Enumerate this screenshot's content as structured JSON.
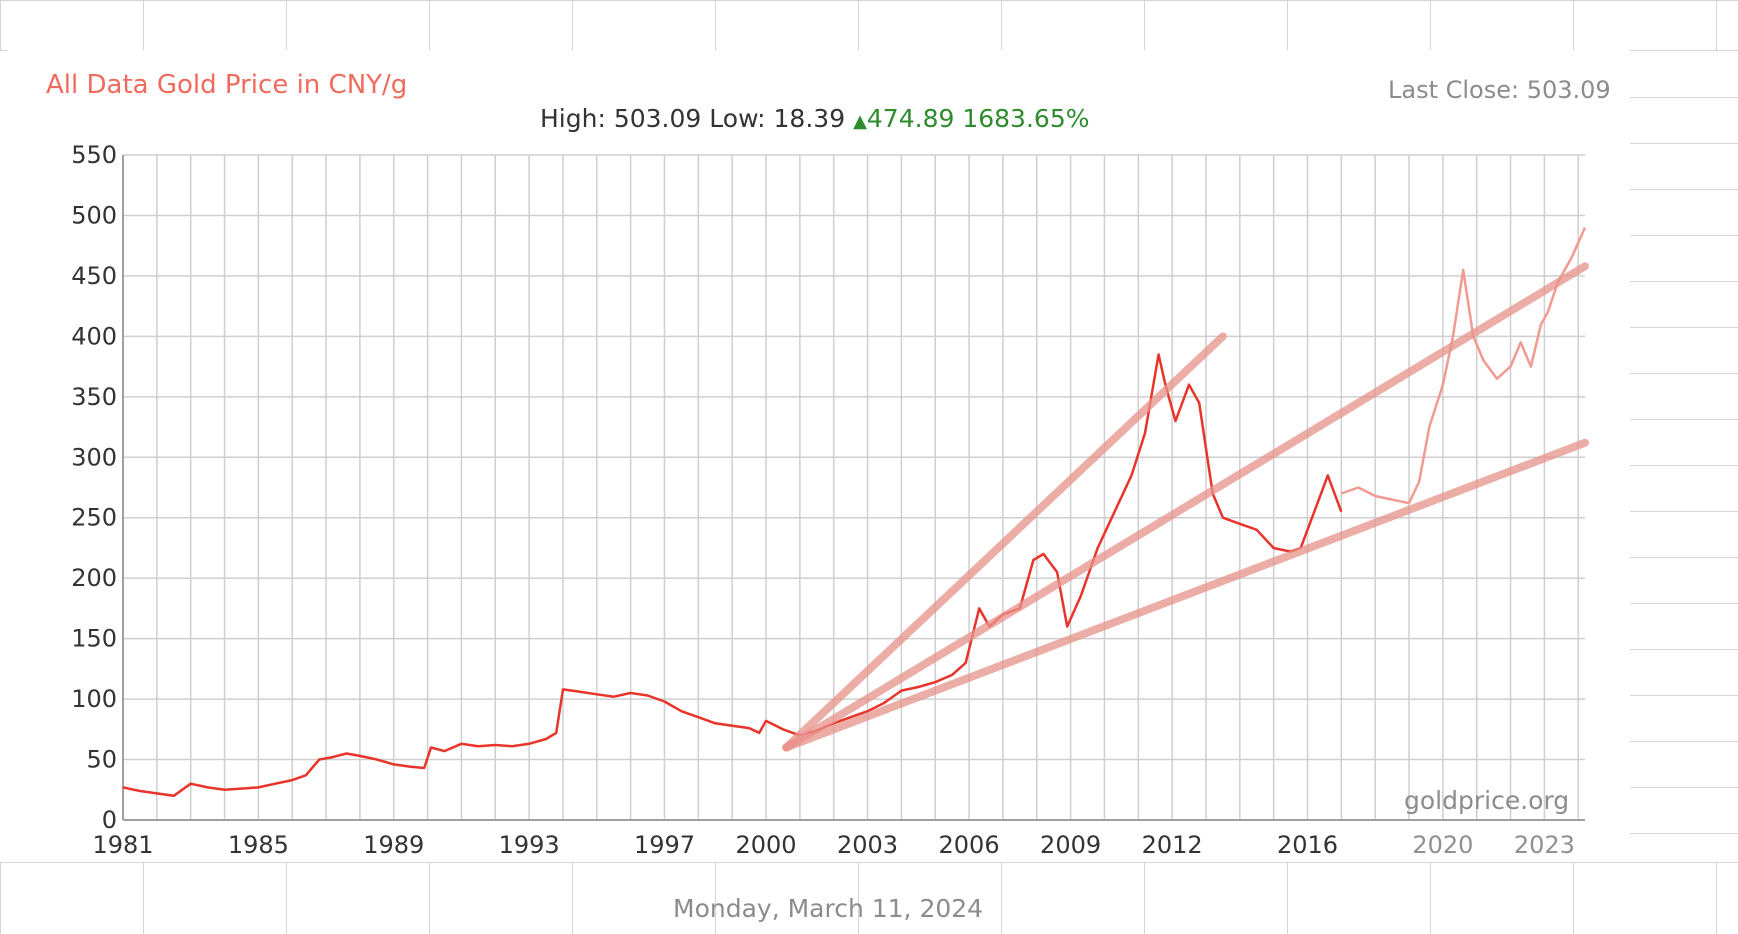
{
  "title": "All Data Gold Price in CNY/g",
  "stats": {
    "high_label": "High:",
    "high_value": "503.09",
    "low_label": "Low:",
    "low_value": "18.39",
    "change_arrow": "▲",
    "change_value": "474.89",
    "change_percent": "1683.65%"
  },
  "last_close": "Last Close: 503.09",
  "watermark": "goldprice.org",
  "footer_date": "Monday, March 11, 2024",
  "colors": {
    "price_line": "#e8342a",
    "price_line_faded": "#f29a92",
    "trend_line": "#e8928a",
    "trend_extension": "#d43a2a",
    "grid": "#cfcfcf",
    "sheet_grid": "#d4d4d4",
    "title": "#f06a5e",
    "change_up": "#2e8b2e"
  },
  "chart_data": {
    "type": "line",
    "title": "All Data Gold Price in CNY/g",
    "xlabel": "",
    "ylabel": "",
    "ylim": [
      0,
      550
    ],
    "xlim": [
      1981,
      2024.2
    ],
    "grid": true,
    "y_ticks": [
      "0",
      "50",
      "100",
      "150",
      "200",
      "250",
      "300",
      "350",
      "400",
      "450",
      "500",
      "550"
    ],
    "x_ticks": [
      {
        "x": 1981,
        "label": "1981"
      },
      {
        "x": 1985,
        "label": "1985"
      },
      {
        "x": 1989,
        "label": "1989"
      },
      {
        "x": 1993,
        "label": "1993"
      },
      {
        "x": 1997,
        "label": "1997"
      },
      {
        "x": 2000,
        "label": "2000"
      },
      {
        "x": 2003,
        "label": "2003"
      },
      {
        "x": 2006,
        "label": "2006"
      },
      {
        "x": 2009,
        "label": "2009"
      },
      {
        "x": 2012,
        "label": "2012"
      },
      {
        "x": 2016,
        "label": "2016"
      },
      {
        "x": 2020,
        "label": "2020"
      },
      {
        "x": 2023,
        "label": "2023"
      }
    ],
    "series": [
      {
        "name": "",
        "x": [
          1981.0,
          1981.5,
          1982.0,
          1982.5,
          1983.0,
          1983.5,
          1984.0,
          1984.5,
          1985.0,
          1985.5,
          1986.0,
          1986.4,
          1986.8,
          1987.2,
          1987.6,
          1988.0,
          1988.5,
          1989.0,
          1989.5,
          1989.9,
          1990.1,
          1990.5,
          1991.0,
          1991.5,
          1992.0,
          1992.5,
          1993.0,
          1993.5,
          1993.8,
          1994.0,
          1994.5,
          1995.0,
          1995.5,
          1996.0,
          1996.5,
          1997.0,
          1997.5,
          1998.0,
          1998.5,
          1999.0,
          1999.5,
          1999.8,
          2000.0,
          2000.5,
          2001.0,
          2001.5,
          2002.0,
          2002.5,
          2003.0,
          2003.5,
          2004.0,
          2004.5,
          2005.0,
          2005.5,
          2005.9,
          2006.3,
          2006.6,
          2007.0,
          2007.5,
          2007.9,
          2008.2,
          2008.6,
          2008.9,
          2009.3,
          2009.8,
          2010.3,
          2010.8,
          2011.2,
          2011.6,
          2011.8,
          2012.1,
          2012.5,
          2012.8,
          2013.2,
          2013.5,
          2014.0,
          2014.5,
          2015.0,
          2015.5,
          2015.8,
          2016.2,
          2016.6,
          2017.0
        ],
        "values": [
          27,
          24,
          22,
          20,
          30,
          27,
          25,
          26,
          27,
          30,
          33,
          37,
          50,
          52,
          55,
          53,
          50,
          46,
          44,
          43,
          60,
          57,
          63,
          61,
          62,
          61,
          63,
          67,
          72,
          108,
          106,
          104,
          102,
          105,
          103,
          98,
          90,
          85,
          80,
          78,
          76,
          72,
          82,
          75,
          70,
          74,
          80,
          85,
          90,
          97,
          107,
          110,
          114,
          120,
          130,
          175,
          160,
          170,
          175,
          215,
          220,
          205,
          160,
          185,
          225,
          255,
          285,
          320,
          385,
          360,
          330,
          360,
          345,
          270,
          250,
          245,
          240,
          225,
          222,
          225,
          255,
          285,
          255
        ]
      },
      {
        "name": "",
        "x": [
          2017.0,
          2017.5,
          2018.0,
          2018.5,
          2019.0,
          2019.3,
          2019.6,
          2020.0,
          2020.3,
          2020.6,
          2020.9,
          2021.2,
          2021.6,
          2022.0,
          2022.3,
          2022.6,
          2022.9,
          2023.1,
          2023.4,
          2023.8,
          2024.2
        ],
        "values": [
          270,
          275,
          268,
          265,
          262,
          280,
          325,
          360,
          400,
          455,
          400,
          380,
          365,
          375,
          395,
          375,
          410,
          420,
          445,
          465,
          490
        ]
      }
    ],
    "trend_lines": [
      {
        "x": [
          2000.6,
          2024.2
        ],
        "values": [
          60,
          312
        ]
      },
      {
        "x": [
          2000.6,
          2024.2
        ],
        "values": [
          60,
          458
        ]
      },
      {
        "x": [
          2000.6,
          2013.5
        ],
        "values": [
          60,
          400
        ]
      }
    ]
  }
}
